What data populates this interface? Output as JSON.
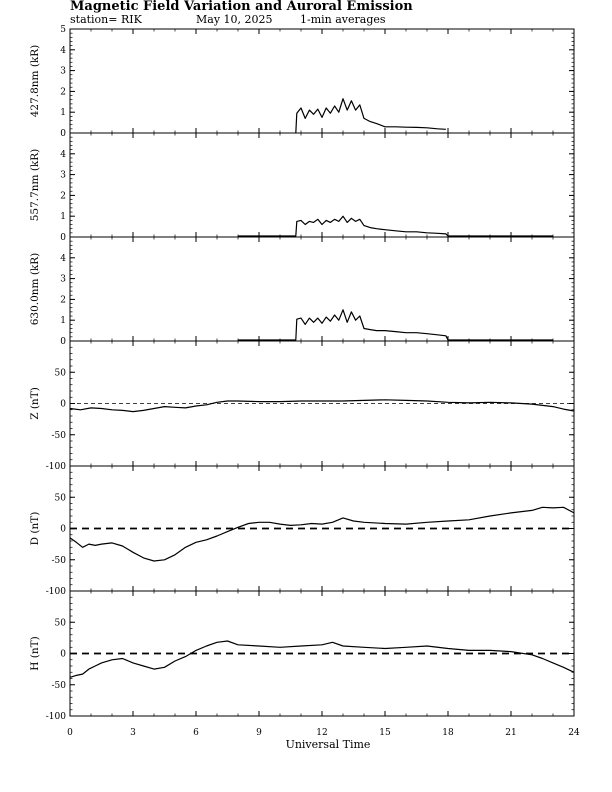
{
  "header": {
    "title": "Magnetic Field Variation and Auroral Emission",
    "station": "station= RIK",
    "date": "May 10, 2025",
    "averaging": "1-min averages"
  },
  "chart_data": [
    {
      "type": "line",
      "ylabel": "427.8nm (kR)",
      "xlim": [
        0,
        24
      ],
      "ylim": [
        0,
        5
      ],
      "yticks": [
        0,
        1,
        2,
        3,
        4,
        5
      ],
      "zero_line": "none",
      "series": [
        {
          "x": [
            10.75,
            10.8,
            11.0,
            11.2,
            11.4,
            11.6,
            11.8,
            12.0,
            12.2,
            12.4,
            12.6,
            12.8,
            13.0,
            13.2,
            13.4,
            13.6,
            13.8,
            14.0,
            14.3,
            14.6,
            15.0,
            15.5,
            16.0,
            16.5,
            17.0,
            17.5,
            17.9
          ],
          "y": [
            0,
            0.95,
            1.2,
            0.7,
            1.1,
            0.9,
            1.15,
            0.75,
            1.2,
            0.95,
            1.3,
            1.0,
            1.65,
            1.1,
            1.55,
            1.1,
            1.35,
            0.7,
            0.55,
            0.45,
            0.3,
            0.3,
            0.28,
            0.27,
            0.25,
            0.2,
            0.18
          ]
        }
      ]
    },
    {
      "type": "line",
      "ylabel": "557.7nm (kR)",
      "xlim": [
        0,
        24
      ],
      "ylim": [
        0,
        5
      ],
      "yticks": [
        0,
        1,
        2,
        3,
        4
      ],
      "zero_line": "none",
      "series": [
        {
          "x": [
            8.0,
            10.75,
            10.8,
            11.0,
            11.2,
            11.4,
            11.6,
            11.8,
            12.0,
            12.2,
            12.4,
            12.6,
            12.8,
            13.0,
            13.2,
            13.4,
            13.6,
            13.8,
            14.0,
            14.3,
            14.6,
            15.0,
            15.5,
            16.0,
            16.5,
            17.0,
            17.5,
            17.9,
            18.0,
            23.0
          ],
          "y": [
            0.05,
            0.05,
            0.75,
            0.8,
            0.6,
            0.75,
            0.7,
            0.85,
            0.6,
            0.8,
            0.7,
            0.85,
            0.75,
            1.0,
            0.7,
            0.9,
            0.75,
            0.85,
            0.55,
            0.45,
            0.4,
            0.35,
            0.3,
            0.25,
            0.25,
            0.2,
            0.18,
            0.15,
            0.05,
            0.05
          ]
        }
      ]
    },
    {
      "type": "line",
      "ylabel": "630.0nm (kR)",
      "xlim": [
        0,
        24
      ],
      "ylim": [
        0,
        5
      ],
      "yticks": [
        0,
        1,
        2,
        3,
        4
      ],
      "zero_line": "none",
      "series": [
        {
          "x": [
            8.0,
            10.75,
            10.8,
            11.0,
            11.2,
            11.4,
            11.6,
            11.8,
            12.0,
            12.2,
            12.4,
            12.6,
            12.8,
            13.0,
            13.2,
            13.4,
            13.6,
            13.8,
            14.0,
            14.3,
            14.6,
            15.0,
            15.5,
            16.0,
            16.5,
            17.0,
            17.5,
            17.9,
            18.0,
            23.0
          ],
          "y": [
            0.05,
            0.05,
            1.05,
            1.1,
            0.8,
            1.1,
            0.9,
            1.1,
            0.85,
            1.15,
            0.95,
            1.25,
            1.0,
            1.5,
            0.9,
            1.4,
            1.0,
            1.2,
            0.6,
            0.55,
            0.5,
            0.5,
            0.45,
            0.4,
            0.4,
            0.35,
            0.3,
            0.25,
            0.05,
            0.05
          ]
        }
      ]
    },
    {
      "type": "line",
      "ylabel": "Z (nT)",
      "xlim": [
        0,
        24
      ],
      "ylim": [
        -100,
        100
      ],
      "yticks": [
        -100,
        -50,
        0,
        50
      ],
      "zero_line": "thin-dashed",
      "series": [
        {
          "x": [
            0,
            0.5,
            1,
            1.5,
            2,
            2.5,
            3,
            3.5,
            4,
            4.5,
            5,
            5.5,
            6,
            6.5,
            7,
            7.5,
            8,
            9,
            10,
            11,
            12,
            13,
            14,
            15,
            16,
            17,
            18,
            19,
            20,
            21,
            22,
            23,
            23.5,
            24
          ],
          "y": [
            -8,
            -10,
            -7,
            -8,
            -10,
            -11,
            -13,
            -11,
            -8,
            -5,
            -6,
            -7,
            -4,
            -2,
            2,
            4,
            4,
            3,
            3,
            4,
            4,
            4,
            5,
            6,
            5,
            4,
            2,
            1,
            2,
            1,
            -1,
            -5,
            -9,
            -12
          ]
        }
      ]
    },
    {
      "type": "line",
      "ylabel": "D (nT)",
      "xlim": [
        0,
        24
      ],
      "ylim": [
        -100,
        100
      ],
      "yticks": [
        -100,
        -50,
        0,
        50
      ],
      "zero_line": "thick-dashed",
      "series": [
        {
          "x": [
            0,
            0.3,
            0.6,
            0.9,
            1.2,
            1.5,
            2,
            2.5,
            3,
            3.5,
            4,
            4.5,
            5,
            5.5,
            6,
            6.5,
            7,
            7.5,
            8,
            8.5,
            9,
            9.5,
            10,
            10.5,
            11,
            11.5,
            12,
            12.5,
            13,
            13.5,
            14,
            15,
            16,
            17,
            18,
            19,
            20,
            21,
            22,
            22.5,
            23,
            23.5,
            24
          ],
          "y": [
            -15,
            -22,
            -30,
            -25,
            -27,
            -25,
            -23,
            -28,
            -38,
            -47,
            -52,
            -50,
            -42,
            -30,
            -22,
            -18,
            -12,
            -5,
            2,
            8,
            10,
            10,
            7,
            5,
            6,
            8,
            7,
            10,
            17,
            12,
            10,
            8,
            7,
            10,
            12,
            14,
            20,
            25,
            29,
            34,
            33,
            34,
            25
          ]
        }
      ]
    },
    {
      "type": "line",
      "ylabel": "H (nT)",
      "xlim": [
        0,
        24
      ],
      "ylim": [
        -100,
        100
      ],
      "yticks": [
        -100,
        -50,
        0,
        50
      ],
      "zero_line": "thick-dashed",
      "series": [
        {
          "x": [
            0,
            0.3,
            0.6,
            0.9,
            1.2,
            1.5,
            2,
            2.5,
            3,
            3.5,
            4,
            4.5,
            5,
            5.5,
            6,
            6.5,
            7,
            7.5,
            8,
            9,
            10,
            11,
            12,
            12.5,
            13,
            14,
            15,
            16,
            17,
            18,
            19,
            20,
            21,
            22,
            22.5,
            23,
            23.5,
            24
          ],
          "y": [
            -38,
            -35,
            -33,
            -25,
            -20,
            -15,
            -10,
            -8,
            -15,
            -20,
            -25,
            -22,
            -12,
            -5,
            5,
            12,
            18,
            20,
            14,
            12,
            10,
            12,
            14,
            18,
            12,
            10,
            8,
            10,
            12,
            8,
            5,
            5,
            3,
            -2,
            -8,
            -15,
            -22,
            -30
          ]
        }
      ]
    }
  ],
  "xaxis": {
    "label": "Universal Time",
    "ticks": [
      "0",
      "3",
      "6",
      "9",
      "12",
      "15",
      "18",
      "21",
      "24"
    ]
  }
}
